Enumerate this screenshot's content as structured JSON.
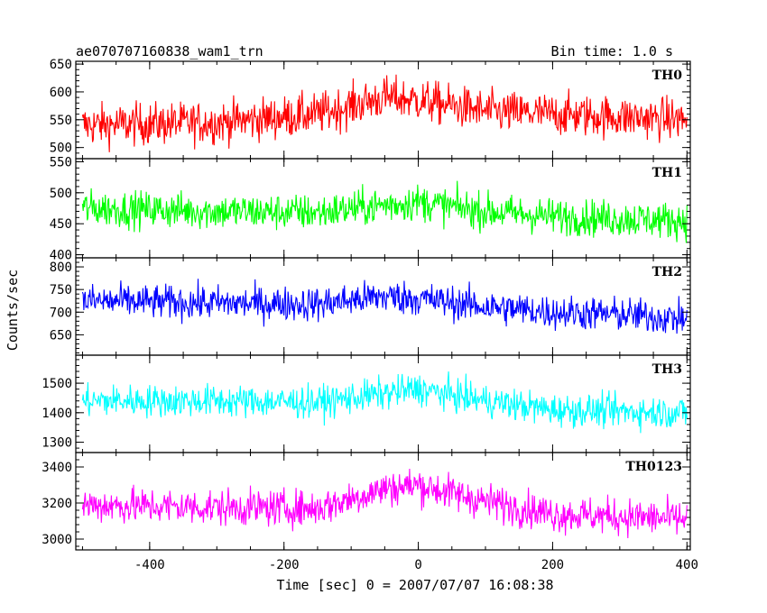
{
  "chart_data": {
    "type": "line",
    "title": "ae070707160838_wam1_trn",
    "bin_time": "Bin time: 1.0 s",
    "xlabel": "Time [sec] 0 = 2007/07/07 16:08:38",
    "ylabel": "Counts/sec",
    "xlim": [
      -510,
      405
    ],
    "x_ticks": [
      -400,
      -200,
      0,
      200,
      400
    ],
    "x_range_data": [
      -500,
      400
    ],
    "grid": false,
    "series": [
      {
        "name": "TH0",
        "color": "#ff0000",
        "ylim": [
          480,
          655
        ],
        "y_ticks": [
          500,
          550,
          600,
          650
        ],
        "trend": [
          [
            -500,
            540
          ],
          [
            -300,
            545
          ],
          [
            -150,
            560
          ],
          [
            -50,
            590
          ],
          [
            0,
            585
          ],
          [
            100,
            565
          ],
          [
            200,
            560
          ],
          [
            300,
            555
          ],
          [
            400,
            550
          ]
        ],
        "noise_amplitude": 45
      },
      {
        "name": "TH1",
        "color": "#00ff00",
        "ylim": [
          395,
          555
        ],
        "y_ticks": [
          400,
          450,
          500,
          550
        ],
        "trend": [
          [
            -500,
            475
          ],
          [
            -300,
            470
          ],
          [
            -150,
            468
          ],
          [
            -50,
            480
          ],
          [
            0,
            485
          ],
          [
            100,
            470
          ],
          [
            200,
            462
          ],
          [
            300,
            458
          ],
          [
            400,
            455
          ]
        ],
        "noise_amplitude": 35
      },
      {
        "name": "TH2",
        "color": "#0000ff",
        "ylim": [
          605,
          820
        ],
        "y_ticks": [
          650,
          700,
          750,
          800
        ],
        "trend": [
          [
            -500,
            725
          ],
          [
            -300,
            720
          ],
          [
            -150,
            718
          ],
          [
            -50,
            735
          ],
          [
            0,
            730
          ],
          [
            100,
            712
          ],
          [
            200,
            700
          ],
          [
            300,
            695
          ],
          [
            400,
            685
          ]
        ],
        "noise_amplitude": 45
      },
      {
        "name": "TH3",
        "color": "#00ffff",
        "ylim": [
          1265,
          1595
        ],
        "y_ticks": [
          1300,
          1400,
          1500
        ],
        "trend": [
          [
            -500,
            1440
          ],
          [
            -300,
            1440
          ],
          [
            -150,
            1435
          ],
          [
            -50,
            1465
          ],
          [
            0,
            1480
          ],
          [
            100,
            1440
          ],
          [
            200,
            1410
          ],
          [
            300,
            1405
          ],
          [
            400,
            1400
          ]
        ],
        "noise_amplitude": 65
      },
      {
        "name": "TH0123",
        "color": "#ff00ff",
        "ylim": [
          2940,
          3480
        ],
        "y_ticks": [
          3000,
          3200,
          3400
        ],
        "trend": [
          [
            -500,
            3190
          ],
          [
            -300,
            3175
          ],
          [
            -150,
            3170
          ],
          [
            -50,
            3280
          ],
          [
            0,
            3300
          ],
          [
            100,
            3210
          ],
          [
            200,
            3140
          ],
          [
            300,
            3125
          ],
          [
            400,
            3110
          ]
        ],
        "noise_amplitude": 120
      }
    ]
  }
}
